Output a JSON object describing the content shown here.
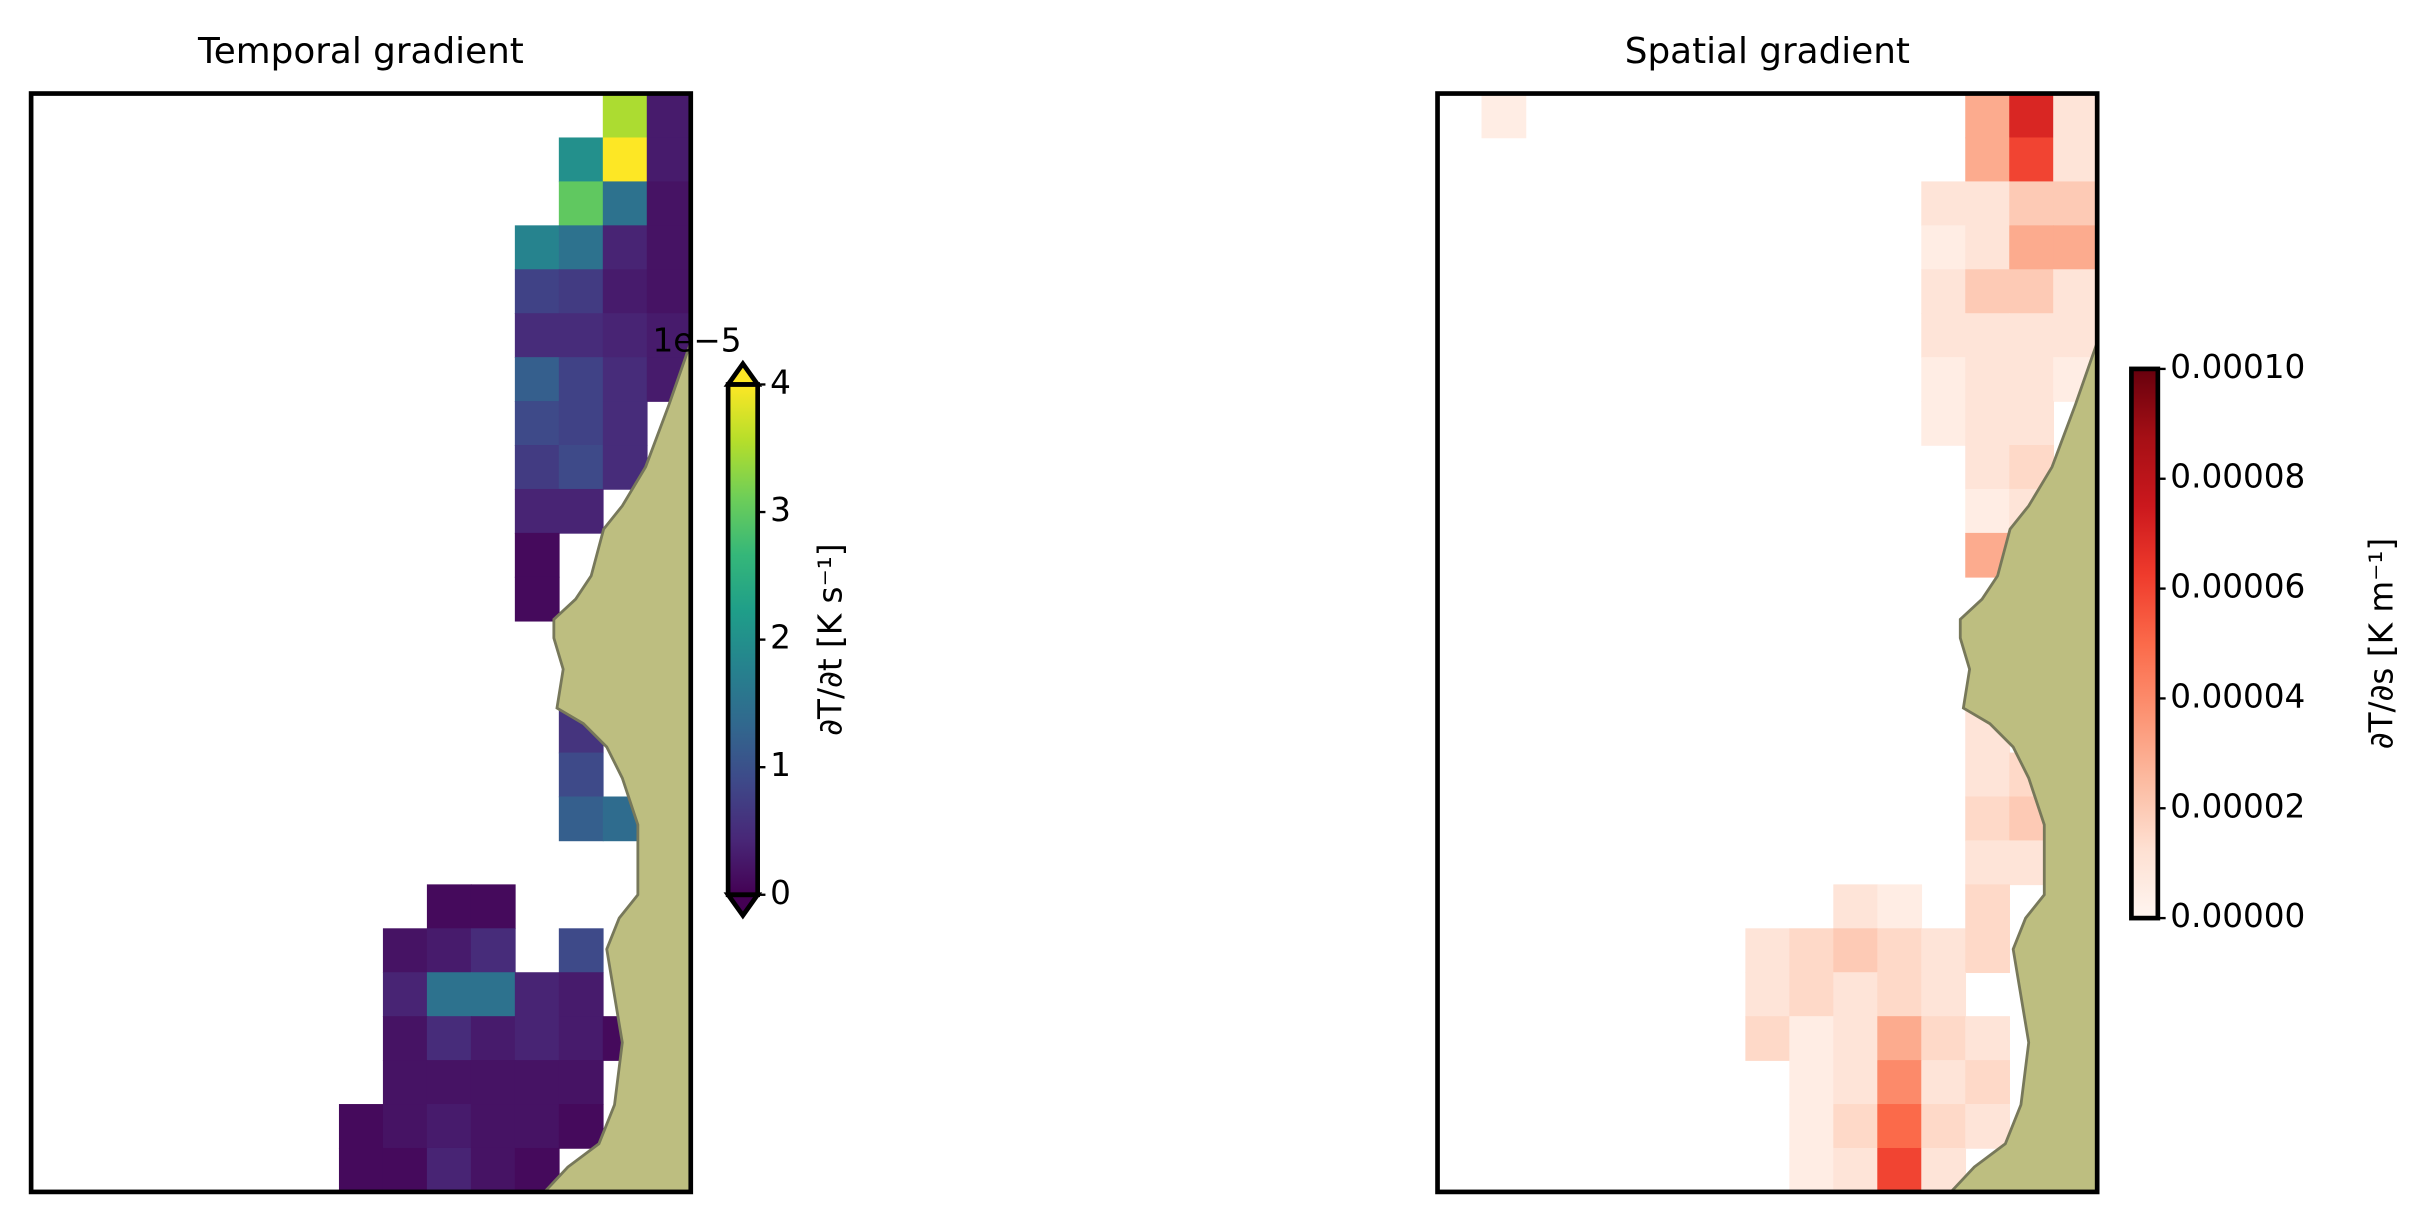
{
  "chart_data": [
    {
      "type": "heatmap",
      "title": "Temporal gradient",
      "colormap": "viridis",
      "xlim": [
        0,
        15
      ],
      "ylim": [
        0,
        25
      ],
      "clim": [
        0,
        4
      ],
      "cticks": [
        0,
        1,
        2,
        3,
        4
      ],
      "extend": "both",
      "colorbar_label": "∂T/∂t [K s⁻¹]",
      "offset_text": "1e−5",
      "values": [
        [
          null,
          null,
          null,
          null,
          null,
          null,
          null,
          null,
          null,
          null,
          null,
          null,
          null,
          3.5,
          0.3
        ],
        [
          null,
          null,
          null,
          null,
          null,
          null,
          null,
          null,
          null,
          null,
          null,
          null,
          2,
          4,
          0.3
        ],
        [
          null,
          null,
          null,
          null,
          null,
          null,
          null,
          null,
          null,
          null,
          null,
          null,
          3,
          1.5,
          0.2
        ],
        [
          null,
          null,
          null,
          null,
          null,
          null,
          null,
          null,
          null,
          null,
          null,
          1.8,
          1.5,
          0.4,
          0.2
        ],
        [
          null,
          null,
          null,
          null,
          null,
          null,
          null,
          null,
          null,
          null,
          null,
          0.8,
          0.7,
          0.3,
          0.2
        ],
        [
          null,
          null,
          null,
          null,
          null,
          null,
          null,
          null,
          null,
          null,
          null,
          0.5,
          0.5,
          0.4,
          0.3
        ],
        [
          null,
          null,
          null,
          null,
          null,
          null,
          null,
          null,
          null,
          null,
          null,
          1.2,
          0.8,
          0.5,
          0.3
        ],
        [
          null,
          null,
          null,
          null,
          null,
          null,
          null,
          null,
          null,
          null,
          null,
          0.9,
          0.8,
          0.5,
          null
        ],
        [
          null,
          null,
          null,
          null,
          null,
          null,
          null,
          null,
          null,
          null,
          null,
          0.7,
          0.9,
          0.5,
          null
        ],
        [
          null,
          null,
          null,
          null,
          null,
          null,
          null,
          null,
          null,
          null,
          null,
          0.4,
          0.4,
          null,
          null
        ],
        [
          null,
          null,
          null,
          null,
          null,
          null,
          null,
          null,
          null,
          null,
          null,
          0.1,
          null,
          null,
          null
        ],
        [
          null,
          null,
          null,
          null,
          null,
          null,
          null,
          null,
          null,
          null,
          null,
          0.1,
          null,
          null,
          null
        ],
        [
          null,
          null,
          null,
          null,
          null,
          null,
          null,
          null,
          null,
          null,
          null,
          null,
          null,
          null,
          null
        ],
        [
          null,
          null,
          null,
          null,
          null,
          null,
          null,
          null,
          null,
          null,
          null,
          null,
          null,
          null,
          null
        ],
        [
          null,
          null,
          null,
          null,
          null,
          null,
          null,
          null,
          null,
          null,
          null,
          null,
          0.6,
          null,
          null
        ],
        [
          null,
          null,
          null,
          null,
          null,
          null,
          null,
          null,
          null,
          null,
          null,
          null,
          0.9,
          null,
          null
        ],
        [
          null,
          null,
          null,
          null,
          null,
          null,
          null,
          null,
          null,
          null,
          null,
          null,
          1.2,
          1.4,
          null
        ],
        [
          null,
          null,
          null,
          null,
          null,
          null,
          null,
          null,
          null,
          null,
          null,
          null,
          null,
          null,
          null
        ],
        [
          null,
          null,
          null,
          null,
          null,
          null,
          null,
          null,
          null,
          0.1,
          0.1,
          null,
          null,
          null,
          null
        ],
        [
          null,
          null,
          null,
          null,
          null,
          null,
          null,
          null,
          0.2,
          0.3,
          0.5,
          null,
          0.9,
          null,
          null
        ],
        [
          null,
          null,
          null,
          null,
          null,
          null,
          null,
          null,
          0.4,
          1.5,
          1.5,
          0.4,
          0.3,
          null,
          null
        ],
        [
          null,
          null,
          null,
          null,
          null,
          null,
          null,
          null,
          0.2,
          0.5,
          0.3,
          0.4,
          0.3,
          0.1,
          null
        ],
        [
          null,
          null,
          null,
          null,
          null,
          null,
          null,
          null,
          0.2,
          0.2,
          0.2,
          0.2,
          0.2,
          null,
          null
        ],
        [
          null,
          null,
          null,
          null,
          null,
          null,
          null,
          0.1,
          0.2,
          0.3,
          0.2,
          0.2,
          0.1,
          null,
          null
        ],
        [
          null,
          null,
          null,
          null,
          null,
          null,
          null,
          0.1,
          0.1,
          0.4,
          0.2,
          0.1,
          null,
          null,
          null
        ]
      ]
    },
    {
      "type": "heatmap",
      "title": "Spatial gradient",
      "colormap": "Reds",
      "xlim": [
        0,
        15
      ],
      "ylim": [
        0,
        25
      ],
      "clim": [
        0,
        0.0001
      ],
      "cticks": [
        {
          "value": 0,
          "label": "0.00000"
        },
        {
          "value": 2e-05,
          "label": "0.00002"
        },
        {
          "value": 4e-05,
          "label": "0.00004"
        },
        {
          "value": 6e-05,
          "label": "0.00006"
        },
        {
          "value": 8e-05,
          "label": "0.00008"
        },
        {
          "value": 0.0001,
          "label": "0.00010"
        }
      ],
      "colorbar_label": "∂T/∂s [K m⁻¹]",
      "values": [
        [
          null,
          5e-06,
          null,
          null,
          null,
          null,
          null,
          null,
          null,
          null,
          null,
          null,
          3e-05,
          7e-05,
          1e-05
        ],
        [
          null,
          null,
          null,
          null,
          null,
          null,
          null,
          null,
          null,
          null,
          null,
          null,
          3e-05,
          6e-05,
          1e-05
        ],
        [
          null,
          null,
          null,
          null,
          null,
          null,
          null,
          null,
          null,
          null,
          null,
          1e-05,
          1e-05,
          2e-05,
          2e-05
        ],
        [
          null,
          null,
          null,
          null,
          null,
          null,
          null,
          null,
          null,
          null,
          null,
          5e-06,
          1e-05,
          3e-05,
          3e-05
        ],
        [
          null,
          null,
          null,
          null,
          null,
          null,
          null,
          null,
          null,
          null,
          null,
          1e-05,
          2e-05,
          2e-05,
          1e-05
        ],
        [
          null,
          null,
          null,
          null,
          null,
          null,
          null,
          null,
          null,
          null,
          null,
          1e-05,
          1e-05,
          1e-05,
          1e-05
        ],
        [
          null,
          null,
          null,
          null,
          null,
          null,
          null,
          null,
          null,
          null,
          null,
          5e-06,
          1e-05,
          1e-05,
          5e-06
        ],
        [
          null,
          null,
          null,
          null,
          null,
          null,
          null,
          null,
          null,
          null,
          null,
          5e-06,
          1e-05,
          1e-05,
          null
        ],
        [
          null,
          null,
          null,
          null,
          null,
          null,
          null,
          null,
          null,
          null,
          null,
          null,
          1e-05,
          1.5e-05,
          null
        ],
        [
          null,
          null,
          null,
          null,
          null,
          null,
          null,
          null,
          null,
          null,
          null,
          null,
          5e-06,
          1e-05,
          null
        ],
        [
          null,
          null,
          null,
          null,
          null,
          null,
          null,
          null,
          null,
          null,
          null,
          null,
          3e-05,
          null,
          null
        ],
        [
          null,
          null,
          null,
          null,
          null,
          null,
          null,
          null,
          null,
          null,
          null,
          null,
          null,
          null,
          null
        ],
        [
          null,
          null,
          null,
          null,
          null,
          null,
          null,
          null,
          null,
          null,
          null,
          null,
          null,
          null,
          null
        ],
        [
          null,
          null,
          null,
          null,
          null,
          null,
          null,
          null,
          null,
          null,
          null,
          null,
          null,
          null,
          null
        ],
        [
          null,
          null,
          null,
          null,
          null,
          null,
          null,
          null,
          null,
          null,
          null,
          null,
          1e-05,
          null,
          null
        ],
        [
          null,
          null,
          null,
          null,
          null,
          null,
          null,
          null,
          null,
          null,
          null,
          null,
          1e-05,
          1.5e-05,
          null
        ],
        [
          null,
          null,
          null,
          null,
          null,
          null,
          null,
          null,
          null,
          null,
          null,
          null,
          1.5e-05,
          2e-05,
          null
        ],
        [
          null,
          null,
          null,
          null,
          null,
          null,
          null,
          null,
          null,
          null,
          null,
          null,
          1e-05,
          1e-05,
          null
        ],
        [
          null,
          null,
          null,
          null,
          null,
          null,
          null,
          null,
          null,
          1e-05,
          5e-06,
          null,
          1.5e-05,
          null,
          null
        ],
        [
          null,
          null,
          null,
          null,
          null,
          null,
          null,
          1e-05,
          1.5e-05,
          2e-05,
          1.5e-05,
          1e-05,
          1.5e-05,
          null,
          null
        ],
        [
          null,
          null,
          null,
          null,
          null,
          null,
          null,
          1e-05,
          1.5e-05,
          1e-05,
          1.5e-05,
          1e-05,
          null,
          null,
          null
        ],
        [
          null,
          null,
          null,
          null,
          null,
          null,
          null,
          1.5e-05,
          5e-06,
          1e-05,
          3e-05,
          1.5e-05,
          1e-05,
          null,
          null
        ],
        [
          null,
          null,
          null,
          null,
          null,
          null,
          null,
          null,
          5e-06,
          1e-05,
          4e-05,
          1e-05,
          1.5e-05,
          null,
          null
        ],
        [
          null,
          null,
          null,
          null,
          null,
          null,
          null,
          null,
          5e-06,
          1.5e-05,
          5e-05,
          1.5e-05,
          1e-05,
          null,
          null
        ],
        [
          null,
          null,
          null,
          null,
          null,
          null,
          null,
          null,
          5e-06,
          1e-05,
          6e-05,
          1e-05,
          null,
          null,
          null
        ]
      ]
    }
  ]
}
